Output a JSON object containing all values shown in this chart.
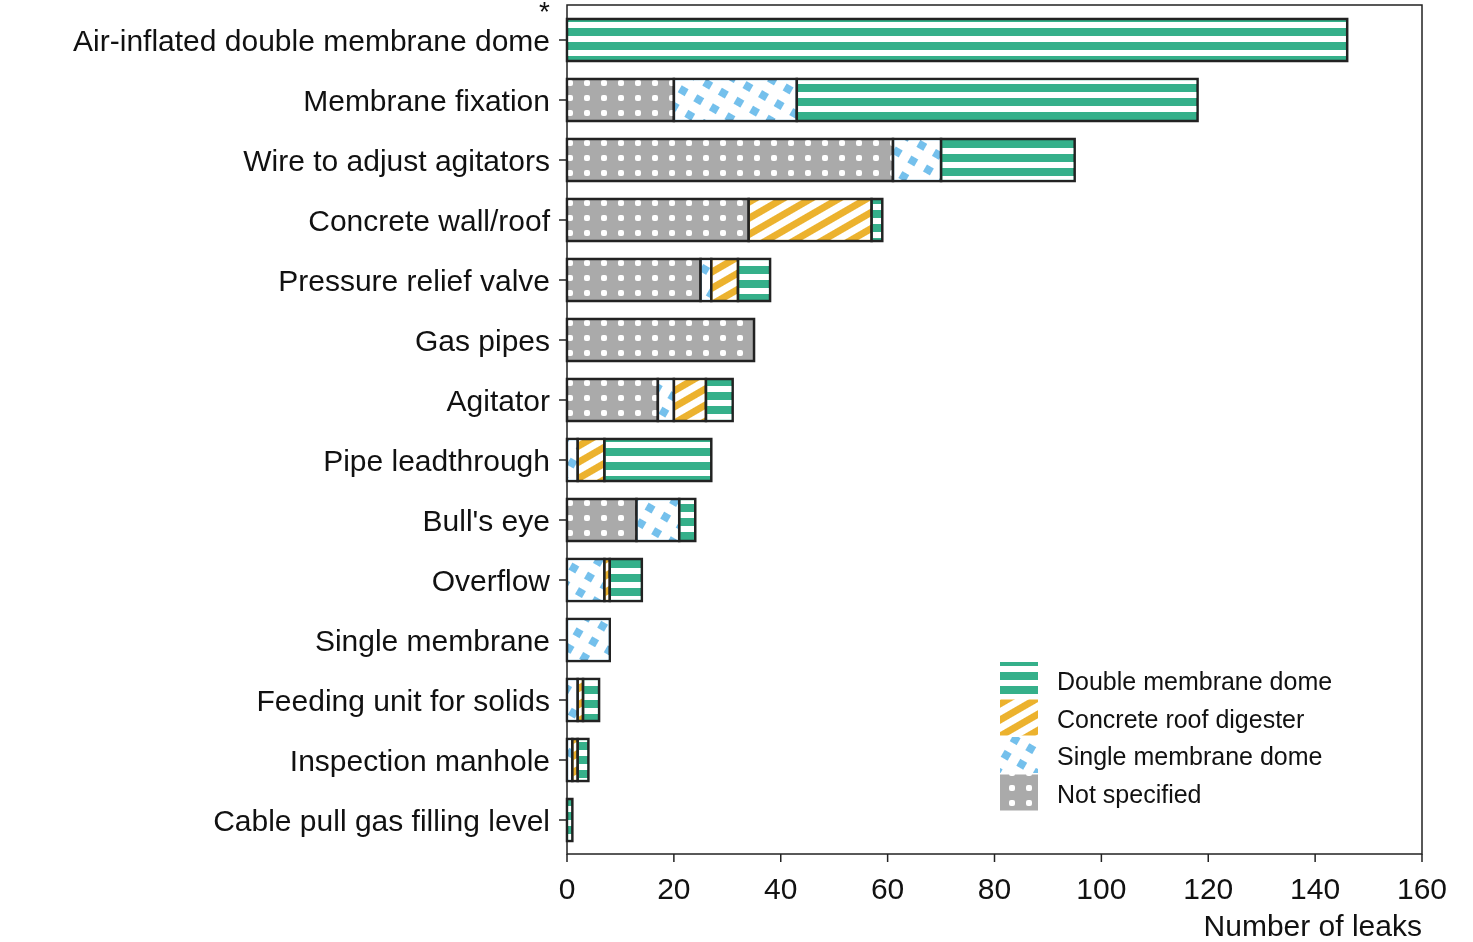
{
  "chart_data": {
    "type": "bar",
    "orientation": "horizontal",
    "stacked": true,
    "categories": [
      "Air-inflated double membrane dome",
      "Membrane fixation",
      "Wire to adjust agitators",
      "Concrete wall/roof",
      "Pressure relief valve",
      "Gas pipes",
      "Agitator",
      "Pipe leadthrough",
      "Bull's eye",
      "Overflow",
      "Single membrane",
      "Feeding unit for solids",
      "Inspection manhole",
      "Cable pull gas filling level"
    ],
    "series": [
      {
        "name": "Not specified",
        "color": "#aaaaaa",
        "values": [
          0,
          20,
          61,
          34,
          25,
          35,
          17,
          0,
          13,
          0,
          0,
          0,
          0,
          0
        ]
      },
      {
        "name": "Single membrane dome",
        "color": "#74c0ec",
        "values": [
          0,
          23,
          9,
          0,
          2,
          0,
          3,
          2,
          8,
          7,
          8,
          2,
          1,
          0
        ]
      },
      {
        "name": "Concrete roof digester",
        "color": "#ecb22e",
        "values": [
          0,
          0,
          0,
          23,
          5,
          0,
          6,
          5,
          0,
          1,
          0,
          1,
          1,
          0
        ]
      },
      {
        "name": "Double membrane dome",
        "color": "#35b08a",
        "values": [
          146,
          75,
          25,
          2,
          6,
          0,
          5,
          20,
          3,
          6,
          0,
          3,
          2,
          1
        ]
      }
    ],
    "xlabel": "Number of leaks",
    "xlim": [
      0,
      160
    ],
    "xticks": [
      0,
      20,
      40,
      60,
      80,
      100,
      120,
      140,
      160
    ],
    "legend": "bottom right",
    "grid": false,
    "annotations": [
      "*"
    ]
  }
}
